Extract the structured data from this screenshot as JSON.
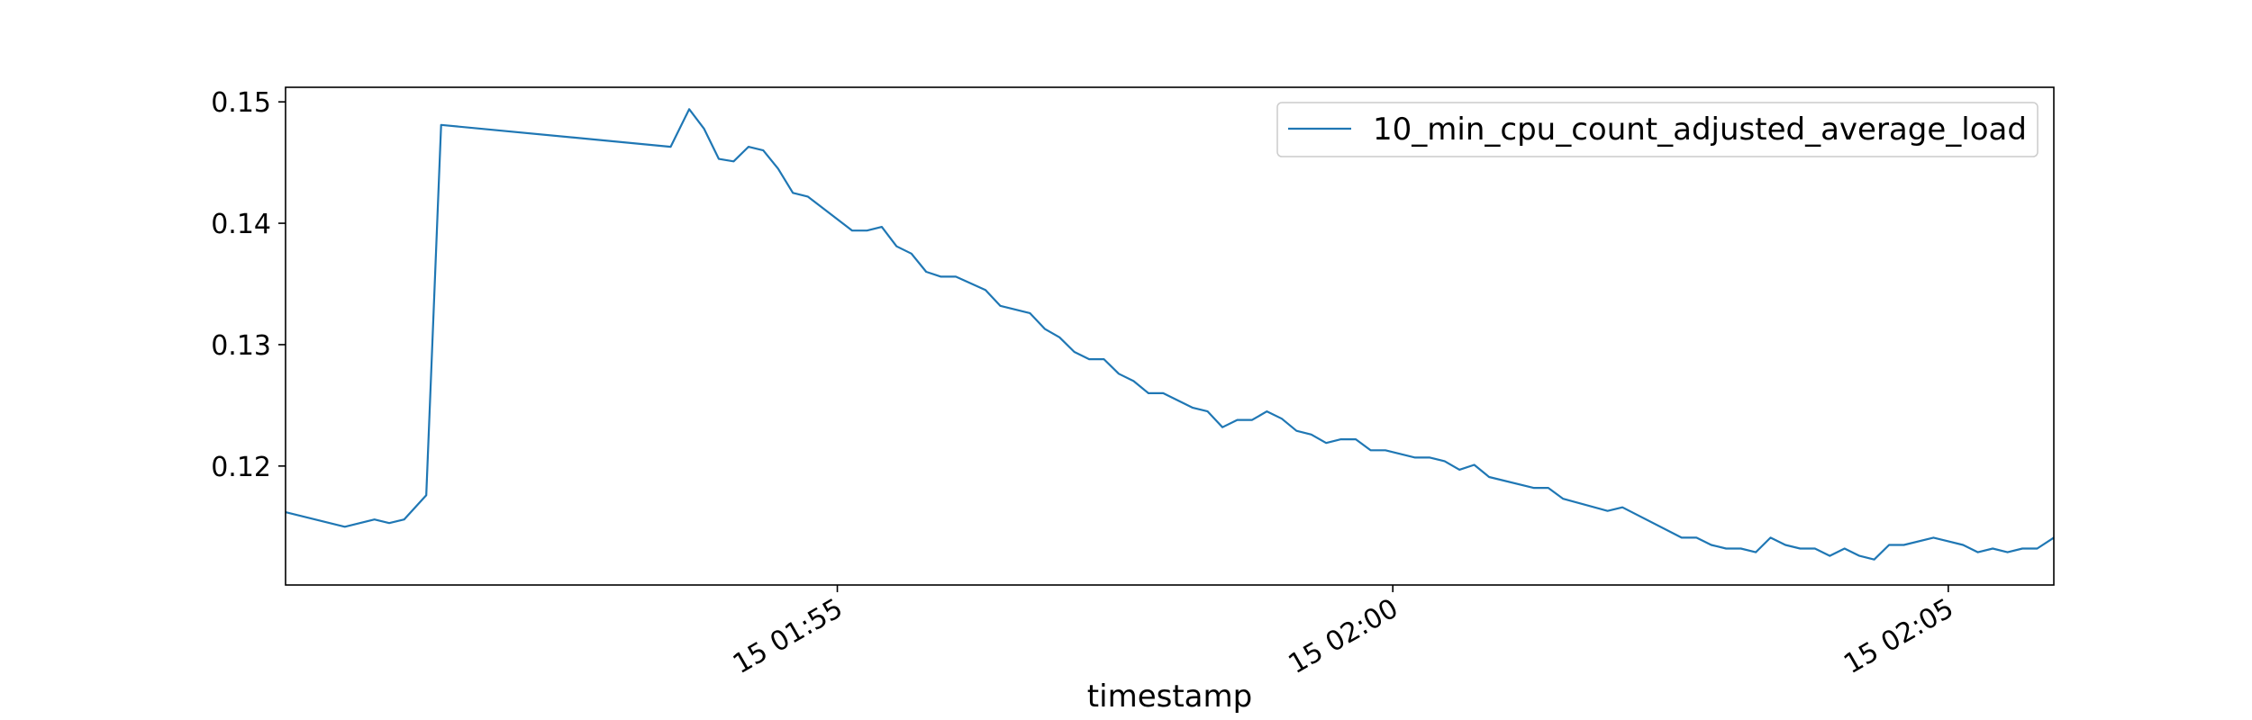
{
  "chart_data": {
    "type": "line",
    "title": "",
    "xlabel": "timestamp",
    "ylabel": "",
    "grid": false,
    "legend_position": "top-right",
    "line_color": "#1f77b4",
    "xlim": [
      "01:50:02",
      "02:05:57"
    ],
    "ylim": [
      0.1102,
      0.1512
    ],
    "x_ticks": [
      {
        "value": "01:55:00",
        "label": "15 01:55"
      },
      {
        "value": "02:00:00",
        "label": "15 02:00"
      },
      {
        "value": "02:05:00",
        "label": "15 02:05"
      }
    ],
    "y_ticks": [
      {
        "value": 0.12,
        "label": "0.12"
      },
      {
        "value": 0.13,
        "label": "0.13"
      },
      {
        "value": 0.14,
        "label": "0.14"
      },
      {
        "value": 0.15,
        "label": "0.15"
      }
    ],
    "series": [
      {
        "name": "10_min_cpu_count_adjusted_average_load",
        "points": [
          [
            "01:50:02",
            0.1162
          ],
          [
            "01:50:34",
            0.115
          ],
          [
            "01:50:50",
            0.1156
          ],
          [
            "01:50:58",
            0.1153
          ],
          [
            "01:51:06",
            0.1156
          ],
          [
            "01:51:18",
            0.1176
          ],
          [
            "01:51:26",
            0.1481
          ],
          [
            "01:53:30",
            0.1463
          ],
          [
            "01:53:40",
            0.1494
          ],
          [
            "01:53:48",
            0.1478
          ],
          [
            "01:53:56",
            0.1453
          ],
          [
            "01:54:04",
            0.1451
          ],
          [
            "01:54:12",
            0.1463
          ],
          [
            "01:54:20",
            0.146
          ],
          [
            "01:54:28",
            0.1445
          ],
          [
            "01:54:36",
            0.1425
          ],
          [
            "01:54:44",
            0.1422
          ],
          [
            "01:55:08",
            0.1394
          ],
          [
            "01:55:16",
            0.1394
          ],
          [
            "01:55:24",
            0.1397
          ],
          [
            "01:55:32",
            0.1381
          ],
          [
            "01:55:40",
            0.1375
          ],
          [
            "01:55:48",
            0.136
          ],
          [
            "01:55:56",
            0.1356
          ],
          [
            "01:56:04",
            0.1356
          ],
          [
            "01:56:20",
            0.1345
          ],
          [
            "01:56:28",
            0.1332
          ],
          [
            "01:56:44",
            0.1326
          ],
          [
            "01:56:52",
            0.1313
          ],
          [
            "01:57:00",
            0.1306
          ],
          [
            "01:57:08",
            0.1294
          ],
          [
            "01:57:16",
            0.1288
          ],
          [
            "01:57:24",
            0.1288
          ],
          [
            "01:57:32",
            0.1276
          ],
          [
            "01:57:40",
            0.127
          ],
          [
            "01:57:48",
            0.126
          ],
          [
            "01:57:56",
            0.126
          ],
          [
            "01:58:12",
            0.1248
          ],
          [
            "01:58:20",
            0.1245
          ],
          [
            "01:58:28",
            0.1232
          ],
          [
            "01:58:36",
            0.1238
          ],
          [
            "01:58:44",
            0.1238
          ],
          [
            "01:58:52",
            0.1245
          ],
          [
            "01:59:00",
            0.1239
          ],
          [
            "01:59:08",
            0.1229
          ],
          [
            "01:59:16",
            0.1226
          ],
          [
            "01:59:24",
            0.1219
          ],
          [
            "01:59:32",
            0.1222
          ],
          [
            "01:59:40",
            0.1222
          ],
          [
            "01:59:48",
            0.1213
          ],
          [
            "01:59:56",
            0.1213
          ],
          [
            "02:00:12",
            0.1207
          ],
          [
            "02:00:20",
            0.1207
          ],
          [
            "02:00:28",
            0.1204
          ],
          [
            "02:00:36",
            0.1197
          ],
          [
            "02:00:44",
            0.1201
          ],
          [
            "02:00:52",
            0.1191
          ],
          [
            "02:01:16",
            0.1182
          ],
          [
            "02:01:24",
            0.1182
          ],
          [
            "02:01:32",
            0.1173
          ],
          [
            "02:01:56",
            0.1163
          ],
          [
            "02:02:04",
            0.1166
          ],
          [
            "02:02:36",
            0.1141
          ],
          [
            "02:02:44",
            0.1141
          ],
          [
            "02:02:52",
            0.1135
          ],
          [
            "02:03:00",
            0.1132
          ],
          [
            "02:03:08",
            0.1132
          ],
          [
            "02:03:16",
            0.1129
          ],
          [
            "02:03:24",
            0.1141
          ],
          [
            "02:03:32",
            0.1135
          ],
          [
            "02:03:40",
            0.1132
          ],
          [
            "02:03:48",
            0.1132
          ],
          [
            "02:03:56",
            0.1126
          ],
          [
            "02:04:04",
            0.1132
          ],
          [
            "02:04:12",
            0.1126
          ],
          [
            "02:04:20",
            0.1123
          ],
          [
            "02:04:28",
            0.1135
          ],
          [
            "02:04:36",
            0.1135
          ],
          [
            "02:04:52",
            0.1141
          ],
          [
            "02:05:08",
            0.1135
          ],
          [
            "02:05:16",
            0.1129
          ],
          [
            "02:05:24",
            0.1132
          ],
          [
            "02:05:32",
            0.1129
          ],
          [
            "02:05:40",
            0.1132
          ],
          [
            "02:05:48",
            0.1132
          ],
          [
            "02:05:57",
            0.1141
          ]
        ]
      }
    ]
  }
}
